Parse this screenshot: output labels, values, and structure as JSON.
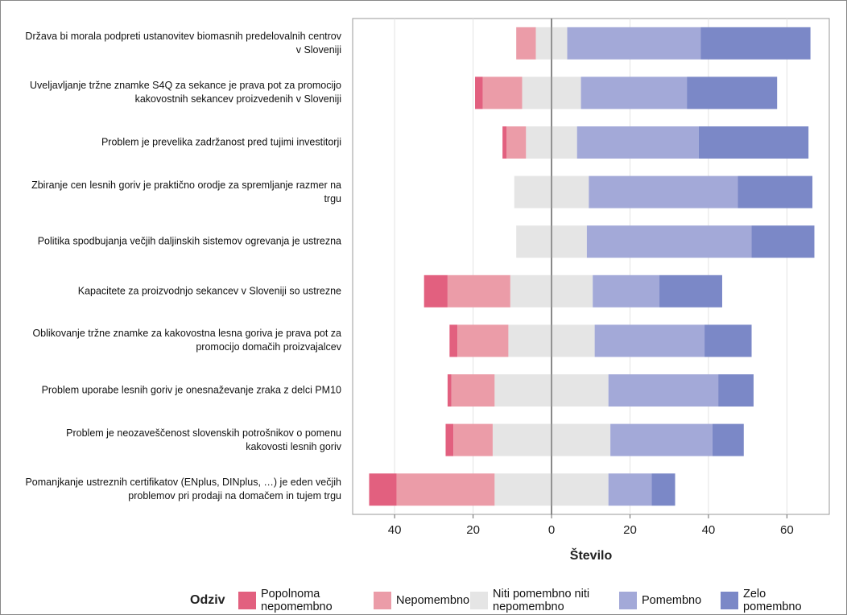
{
  "chart_data": {
    "type": "diverging-bar",
    "categories": [
      "Država bi morala podpreti ustanovitev biomasnih predelovalnih centrov v Sloveniji",
      "Uveljavljanje tržne znamke S4Q za sekance je prava pot za promocijo kakovostnih sekancev proizvedenih v Sloveniji",
      "Problem je prevelika zadržanost pred tujimi investitorji",
      "Zbiranje cen lesnih goriv je praktično orodje za spremljanje razmer na trgu",
      "Politika spodbujanja večjih daljinskih sistemov ogrevanja je ustrezna",
      "Kapacitete za proizvodnjo sekancev v Sloveniji so ustrezne",
      "Oblikovanje tržne znamke za kakovostna lesna goriva je prava pot za promocijo domačih proizvajalcev",
      "Problem uporabe lesnih goriv je onesnaževanje zraka z delci PM10",
      "Problem je neozaveščenost slovenskih potrošnikov o pomenu kakovosti lesnih goriv",
      "Pomanjkanje ustreznih certifikatov (ENplus, DINplus, …) je eden večjih problemov pri prodaji na domačem in tujem trgu"
    ],
    "series": [
      {
        "name": "Popolnoma nepomembno",
        "color": "#e2607f",
        "values": [
          0,
          2,
          1,
          0,
          0,
          6,
          2,
          1,
          2,
          7
        ]
      },
      {
        "name": "Nepomembno",
        "color": "#eb9ca8",
        "values": [
          5,
          10,
          5,
          0,
          0,
          16,
          13,
          11,
          10,
          25
        ]
      },
      {
        "name": "Niti pomembno niti nepomembno",
        "color": "#e5e5e5",
        "values": [
          8,
          15,
          13,
          19,
          18,
          21,
          22,
          29,
          30,
          29
        ]
      },
      {
        "name": "Pomembno",
        "color": "#a3a9d8",
        "values": [
          34,
          27,
          31,
          38,
          42,
          17,
          28,
          28,
          26,
          11
        ]
      },
      {
        "name": "Zelo pomembno",
        "color": "#7b88c7",
        "values": [
          28,
          23,
          28,
          19,
          16,
          16,
          12,
          9,
          8,
          6
        ]
      }
    ],
    "xlabel": "Število",
    "legend_title": "Odziv",
    "xlim": [
      -50.7,
      70.8
    ],
    "xticks": [
      {
        "value": -40,
        "label": "40"
      },
      {
        "value": -20,
        "label": "20"
      },
      0,
      20,
      40,
      60
    ],
    "grid": true
  }
}
